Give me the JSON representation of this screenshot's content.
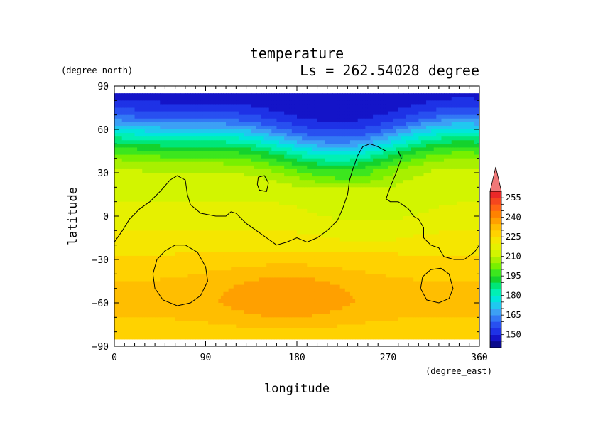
{
  "chart_data": {
    "type": "heatmap",
    "title": "temperature",
    "subtitle": "Ls = 262.54028 degree",
    "xlabel": "longitude",
    "ylabel": "latitude",
    "x_units": "(degree_east)",
    "y_units": "(degree_north)",
    "xlim": [
      0,
      360
    ],
    "ylim": [
      -90,
      90
    ],
    "x_ticks": [
      0,
      90,
      180,
      270,
      360
    ],
    "y_ticks": [
      90,
      60,
      30,
      0,
      -30,
      -60,
      -90
    ],
    "x_tick_labels": [
      "0",
      "90",
      "180",
      "270",
      "360"
    ],
    "y_tick_labels": [
      "90",
      "60",
      "30",
      "0",
      "−30",
      "−60",
      "−90"
    ],
    "data_lat_extent": [
      -85,
      85
    ],
    "colorbar": {
      "levels": [
        140,
        145,
        150,
        155,
        160,
        165,
        170,
        175,
        180,
        185,
        190,
        195,
        200,
        205,
        210,
        215,
        220,
        225,
        230,
        235,
        240,
        245,
        250,
        255,
        260
      ],
      "tick_labels": [
        "150",
        "165",
        "180",
        "195",
        "210",
        "225",
        "240",
        "255"
      ],
      "colors": [
        "#0a0a8c",
        "#1414c8",
        "#1e32e6",
        "#2850f0",
        "#3278f5",
        "#3ca0f5",
        "#20c8f0",
        "#00e6dc",
        "#00f0b4",
        "#00e678",
        "#14d22d",
        "#3ce61e",
        "#78f000",
        "#a8f000",
        "#d2f500",
        "#e6f000",
        "#f5e600",
        "#ffd200",
        "#ffbe00",
        "#ffa000",
        "#ff8200",
        "#ff6414",
        "#f5461e",
        "#eb2828"
      ],
      "extend_color": "#f07878",
      "position": "right"
    },
    "temperature_profile": {
      "lat": [
        85,
        75,
        65,
        60,
        55,
        50,
        45,
        40,
        35,
        30,
        25,
        20,
        10,
        0,
        -10,
        -20,
        -30,
        -40,
        -50,
        -60,
        -70,
        -80,
        -85
      ],
      "temp": [
        147,
        150,
        158,
        166,
        174,
        182,
        190,
        197,
        203,
        208,
        211,
        213,
        215,
        216,
        220,
        223,
        226,
        229,
        231,
        232,
        230,
        227,
        226
      ]
    },
    "contours": [
      {
        "name": "continent-main",
        "points": [
          [
            0,
            -18
          ],
          [
            8,
            -10
          ],
          [
            15,
            -2
          ],
          [
            25,
            5
          ],
          [
            35,
            10
          ],
          [
            45,
            17
          ],
          [
            55,
            25
          ],
          [
            62,
            28
          ],
          [
            70,
            25
          ],
          [
            72,
            15
          ],
          [
            75,
            8
          ],
          [
            85,
            2
          ],
          [
            100,
            0
          ],
          [
            110,
            0
          ],
          [
            115,
            3
          ],
          [
            120,
            2
          ],
          [
            130,
            -5
          ],
          [
            140,
            -10
          ],
          [
            150,
            -15
          ],
          [
            160,
            -20
          ],
          [
            170,
            -18
          ],
          [
            180,
            -15
          ],
          [
            190,
            -18
          ],
          [
            200,
            -15
          ],
          [
            210,
            -10
          ],
          [
            220,
            -3
          ],
          [
            225,
            5
          ],
          [
            230,
            15
          ],
          [
            232,
            25
          ],
          [
            235,
            32
          ],
          [
            240,
            42
          ],
          [
            245,
            48
          ],
          [
            252,
            50
          ],
          [
            260,
            48
          ],
          [
            268,
            45
          ],
          [
            280,
            45
          ],
          [
            283,
            40
          ],
          [
            278,
            30
          ],
          [
            272,
            20
          ],
          [
            268,
            12
          ],
          [
            272,
            10
          ],
          [
            280,
            10
          ],
          [
            290,
            5
          ],
          [
            295,
            0
          ],
          [
            300,
            -2
          ],
          [
            305,
            -8
          ],
          [
            305,
            -15
          ],
          [
            312,
            -20
          ],
          [
            320,
            -22
          ],
          [
            325,
            -28
          ],
          [
            335,
            -30
          ],
          [
            345,
            -30
          ],
          [
            355,
            -25
          ],
          [
            360,
            -20
          ]
        ]
      },
      {
        "name": "island",
        "points": [
          [
            142,
            27
          ],
          [
            148,
            28
          ],
          [
            152,
            23
          ],
          [
            150,
            17
          ],
          [
            143,
            18
          ],
          [
            141,
            22
          ],
          [
            142,
            27
          ]
        ]
      },
      {
        "name": "hellas-ring",
        "points": [
          [
            70,
            -20
          ],
          [
            82,
            -25
          ],
          [
            90,
            -35
          ],
          [
            92,
            -45
          ],
          [
            85,
            -55
          ],
          [
            75,
            -60
          ],
          [
            62,
            -62
          ],
          [
            48,
            -58
          ],
          [
            40,
            -50
          ],
          [
            38,
            -40
          ],
          [
            42,
            -30
          ],
          [
            50,
            -24
          ],
          [
            60,
            -20
          ],
          [
            70,
            -20
          ]
        ]
      },
      {
        "name": "argyre-ring",
        "points": [
          [
            322,
            -36
          ],
          [
            330,
            -40
          ],
          [
            334,
            -50
          ],
          [
            330,
            -57
          ],
          [
            320,
            -60
          ],
          [
            308,
            -58
          ],
          [
            302,
            -50
          ],
          [
            304,
            -42
          ],
          [
            312,
            -37
          ],
          [
            322,
            -36
          ]
        ]
      }
    ]
  }
}
